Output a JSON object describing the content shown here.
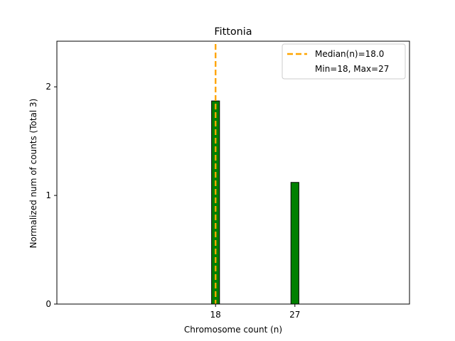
{
  "chart_data": {
    "type": "bar",
    "title": "Fittonia",
    "xlabel": "Chromosome count (n)",
    "ylabel": "Normalized num of counts      (Total 3)",
    "xlim": [
      0,
      40
    ],
    "ylim": [
      0,
      2.42
    ],
    "x_ticks": [
      18,
      27
    ],
    "x_tick_labels": [
      "18",
      "27"
    ],
    "y_ticks": [
      0,
      1,
      2
    ],
    "y_tick_labels": [
      "0",
      "1",
      "2"
    ],
    "bar_width": 0.9,
    "bars": [
      {
        "x": 18,
        "value": 1.87
      },
      {
        "x": 27,
        "value": 1.12
      }
    ],
    "median_line": {
      "x": 18,
      "label": "Median(n)=18.0"
    },
    "range_note": "Min=18, Max=27",
    "legend_position": "top-right",
    "grid": false,
    "colors": {
      "bar_fill": "#008000",
      "bar_edge": "#000000",
      "median_line": "#ffa500",
      "axes": "#000000"
    }
  }
}
